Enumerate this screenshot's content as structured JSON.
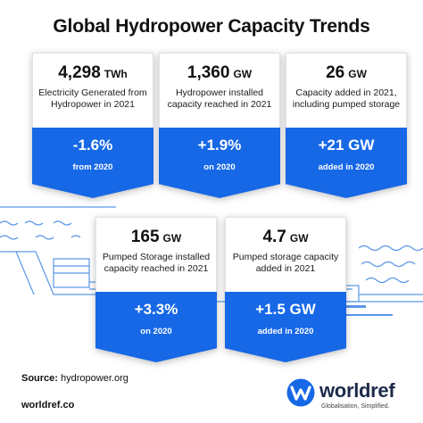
{
  "title": "Global Hydropower Capacity Trends",
  "colors": {
    "accent": "#1668e6",
    "background": "#ffffff",
    "text": "#111111",
    "illustration": "#5b97e8"
  },
  "cards": [
    {
      "value": "4,298",
      "unit": "TWh",
      "description": "Electricity Generated from Hydropower in 2021",
      "change": "-1.6%",
      "note": "from 2020"
    },
    {
      "value": "1,360",
      "unit": "GW",
      "description": "Hydropower installed capacity reached in 2021",
      "change": "+1.9%",
      "note": "on 2020"
    },
    {
      "value": "26",
      "unit": "GW",
      "description": "Capacity added in 2021, including pumped storage",
      "change": "+21 GW",
      "note": "added in  2020"
    },
    {
      "value": "165",
      "unit": "GW",
      "description": "Pumped Storage installed capacity reached in 2021",
      "change": "+3.3%",
      "note": "on 2020"
    },
    {
      "value": "4.7",
      "unit": "GW",
      "description": "Pumped storage capacity added in 2021",
      "change": "+1.5 GW",
      "note": "added in  2020"
    }
  ],
  "source": {
    "label": "Source:",
    "value": "hydropower.org"
  },
  "website": "worldref.co",
  "logo": {
    "name": "worldref",
    "tagline": "Globalisation, Simplified.",
    "icon": "worldref-w-logo"
  }
}
